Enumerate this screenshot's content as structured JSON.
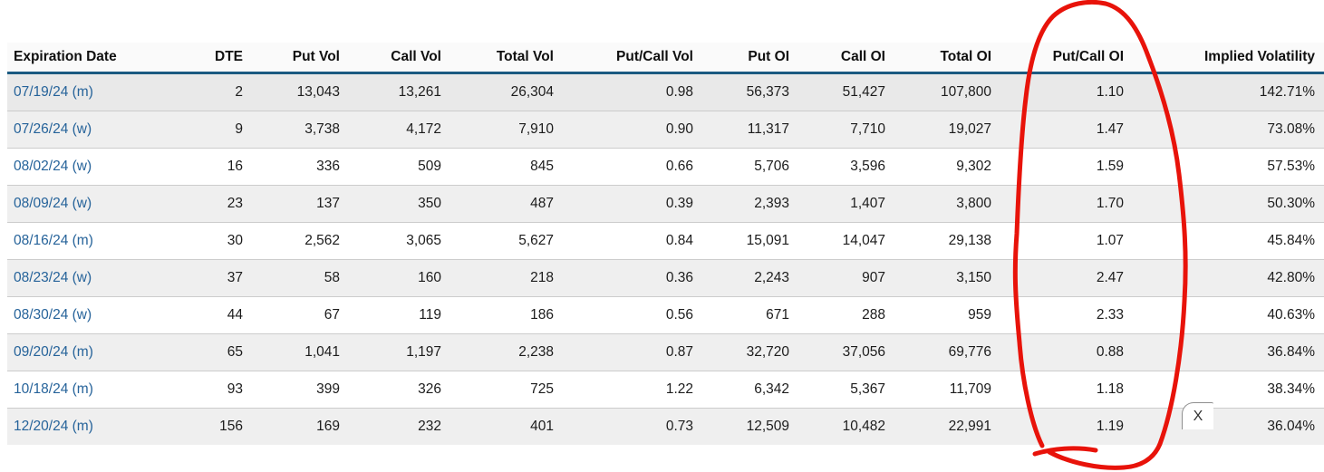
{
  "table": {
    "columns": [
      {
        "key": "expiration",
        "label": "Expiration Date",
        "align": "left"
      },
      {
        "key": "dte",
        "label": "DTE",
        "align": "right"
      },
      {
        "key": "put_vol",
        "label": "Put Vol",
        "align": "right"
      },
      {
        "key": "call_vol",
        "label": "Call Vol",
        "align": "right"
      },
      {
        "key": "total_vol",
        "label": "Total Vol",
        "align": "right"
      },
      {
        "key": "put_call_vol",
        "label": "Put/Call Vol",
        "align": "right"
      },
      {
        "key": "put_oi",
        "label": "Put OI",
        "align": "right"
      },
      {
        "key": "call_oi",
        "label": "Call OI",
        "align": "right"
      },
      {
        "key": "total_oi",
        "label": "Total OI",
        "align": "right"
      },
      {
        "key": "put_call_oi",
        "label": "Put/Call OI",
        "align": "right"
      },
      {
        "key": "implied_volatility",
        "label": "Implied Volatility",
        "align": "right"
      }
    ],
    "rows": [
      [
        "07/19/24 (m)",
        "2",
        "13,043",
        "13,261",
        "26,304",
        "0.98",
        "56,373",
        "51,427",
        "107,800",
        "1.10",
        "142.71%"
      ],
      [
        "07/26/24 (w)",
        "9",
        "3,738",
        "4,172",
        "7,910",
        "0.90",
        "11,317",
        "7,710",
        "19,027",
        "1.47",
        "73.08%"
      ],
      [
        "08/02/24 (w)",
        "16",
        "336",
        "509",
        "845",
        "0.66",
        "5,706",
        "3,596",
        "9,302",
        "1.59",
        "57.53%"
      ],
      [
        "08/09/24 (w)",
        "23",
        "137",
        "350",
        "487",
        "0.39",
        "2,393",
        "1,407",
        "3,800",
        "1.70",
        "50.30%"
      ],
      [
        "08/16/24 (m)",
        "30",
        "2,562",
        "3,065",
        "5,627",
        "0.84",
        "15,091",
        "14,047",
        "29,138",
        "1.07",
        "45.84%"
      ],
      [
        "08/23/24 (w)",
        "37",
        "58",
        "160",
        "218",
        "0.36",
        "2,243",
        "907",
        "3,150",
        "2.47",
        "42.80%"
      ],
      [
        "08/30/24 (w)",
        "44",
        "67",
        "119",
        "186",
        "0.56",
        "671",
        "288",
        "959",
        "2.33",
        "40.63%"
      ],
      [
        "09/20/24 (m)",
        "65",
        "1,041",
        "1,197",
        "2,238",
        "0.87",
        "32,720",
        "37,056",
        "69,776",
        "0.88",
        "36.84%"
      ],
      [
        "10/18/24 (m)",
        "93",
        "399",
        "326",
        "725",
        "1.22",
        "6,342",
        "5,367",
        "11,709",
        "1.18",
        "38.34%"
      ],
      [
        "12/20/24 (m)",
        "156",
        "169",
        "232",
        "401",
        "0.73",
        "12,509",
        "10,482",
        "22,991",
        "1.19",
        "36.04%"
      ]
    ]
  },
  "close_button": {
    "label": "X"
  },
  "annotation": {
    "shape": "hand-drawn-circle",
    "around": "Put/Call OI column",
    "color": "#e8130a"
  },
  "colors": {
    "header_border": "#1b5a82",
    "link": "#26639a",
    "row_alt": "#efefef",
    "row_highlight": "#e9e9e9",
    "annotation_red": "#e8130a"
  }
}
